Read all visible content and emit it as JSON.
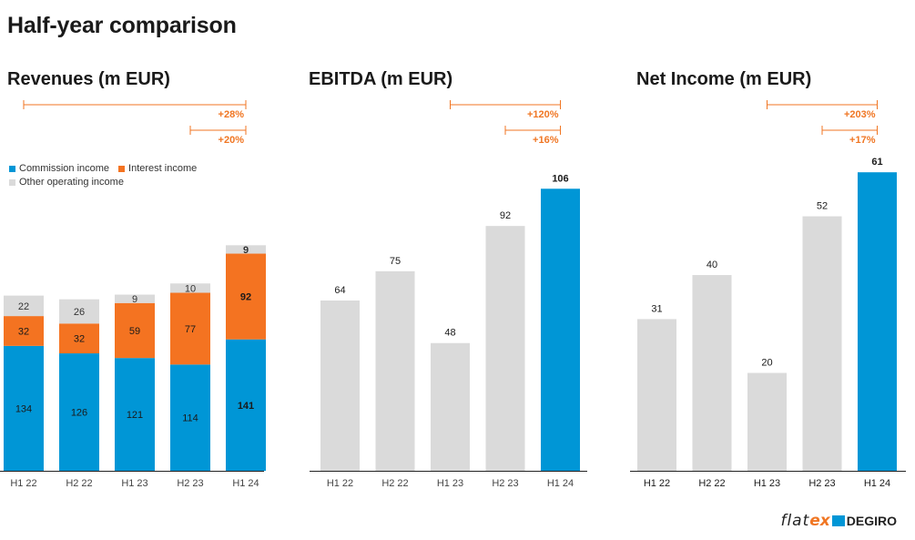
{
  "page": {
    "title": "Half-year comparison"
  },
  "colors": {
    "commission": "#0096d6",
    "interest": "#f47321",
    "other": "#dadada",
    "highlight": "#0096d6",
    "growth": "#f07623",
    "axis": "#222222"
  },
  "legend": {
    "commission": "Commission income",
    "interest": "Interest income",
    "other": "Other operating income"
  },
  "logo": {
    "part1": "flat",
    "part2": "ex",
    "part3": "DEGIRO"
  },
  "chart_data": [
    {
      "type": "bar",
      "stacked": true,
      "title": "Revenues (m EUR)",
      "categories": [
        "H1 22",
        "H2 22",
        "H1 23",
        "H2 23",
        "H1 24"
      ],
      "series": [
        {
          "name": "Commission income",
          "values": [
            134,
            126,
            121,
            114,
            141
          ]
        },
        {
          "name": "Interest income",
          "values": [
            32,
            32,
            59,
            77,
            92
          ]
        },
        {
          "name": "Other operating income",
          "values": [
            22,
            26,
            9,
            10,
            9
          ]
        }
      ],
      "annotations": [
        {
          "from": "H1 22",
          "to": "H1 24",
          "label": "+28%"
        },
        {
          "from": "H2 23",
          "to": "H1 24",
          "label": "+20%"
        }
      ]
    },
    {
      "type": "bar",
      "title": "EBITDA (m EUR)",
      "categories": [
        "H1 22",
        "H2 22",
        "H1 23",
        "H2 23",
        "H1 24"
      ],
      "values": [
        64,
        75,
        48,
        92,
        106
      ],
      "annotations": [
        {
          "from": "H1 23",
          "to": "H1 24",
          "label": "+120%"
        },
        {
          "from": "H2 23",
          "to": "H1 24",
          "label": "+16%"
        }
      ]
    },
    {
      "type": "bar",
      "title": "Net Income (m EUR)",
      "categories": [
        "H1 22",
        "H2 22",
        "H1 23",
        "H2 23",
        "H1 24"
      ],
      "values": [
        31,
        40,
        20,
        52,
        61
      ],
      "annotations": [
        {
          "from": "H1 23",
          "to": "H1 24",
          "label": "+203%"
        },
        {
          "from": "H2 23",
          "to": "H1 24",
          "label": "+17%"
        }
      ]
    }
  ]
}
